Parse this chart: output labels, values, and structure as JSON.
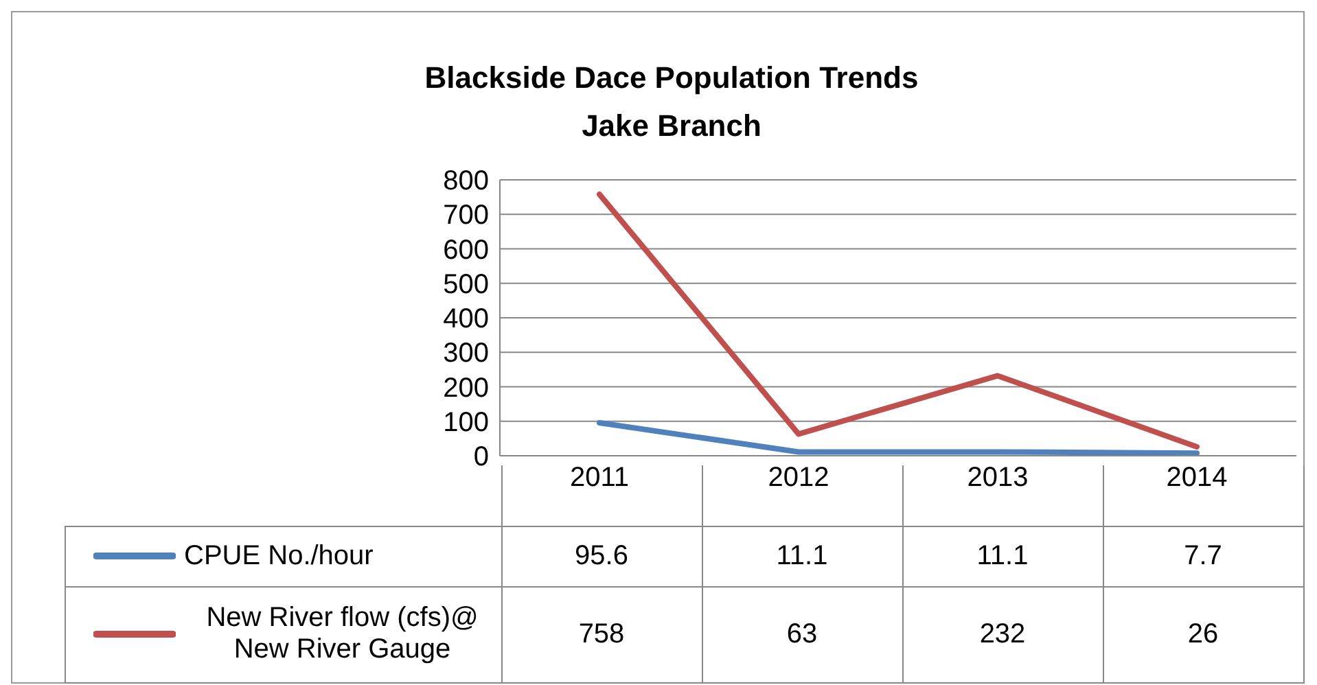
{
  "chart_data": {
    "type": "line",
    "title": "Blackside Dace Population Trends",
    "subtitle": "Jake Branch",
    "categories": [
      "2011",
      "2012",
      "2013",
      "2014"
    ],
    "series": [
      {
        "name": "CPUE No./hour",
        "color": "#4f81bd",
        "values": [
          95.6,
          11.1,
          11.1,
          7.7
        ]
      },
      {
        "name": "New River flow (cfs)@ New River Gauge",
        "color": "#c0504d",
        "values": [
          758,
          63,
          232,
          26
        ]
      }
    ],
    "ylim": [
      0,
      800
    ],
    "yticks": [
      0,
      100,
      200,
      300,
      400,
      500,
      600,
      700,
      800
    ],
    "grid": "y",
    "legend": "bottom",
    "marker": "none",
    "line_style": "solid",
    "data_labels": true
  }
}
